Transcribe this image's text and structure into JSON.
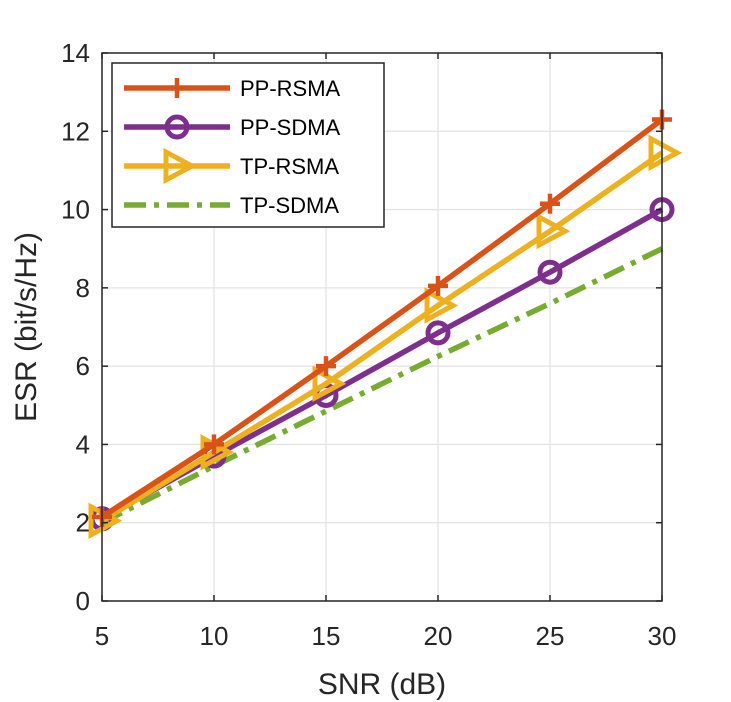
{
  "chart_data": {
    "type": "line",
    "title": "",
    "xlabel": "SNR (dB)",
    "ylabel": "ESR (bit/s/Hz)",
    "xlim": [
      5,
      30
    ],
    "ylim": [
      0,
      14
    ],
    "xticks": [
      5,
      10,
      15,
      20,
      25,
      30
    ],
    "yticks": [
      0,
      2,
      4,
      6,
      8,
      10,
      12,
      14
    ],
    "grid": true,
    "legend_position": "top-left",
    "x": [
      5,
      10,
      15,
      20,
      25,
      30
    ],
    "series": [
      {
        "name": "PP-RSMA",
        "values": [
          2.15,
          4.0,
          6.0,
          8.05,
          10.15,
          12.3
        ],
        "color": "#D95319",
        "marker": "plus",
        "line_style": "solid"
      },
      {
        "name": "PP-SDMA",
        "values": [
          2.1,
          3.7,
          5.25,
          6.85,
          8.4,
          10.0
        ],
        "color": "#7E2F8E",
        "marker": "circle",
        "line_style": "solid"
      },
      {
        "name": "TP-RSMA",
        "values": [
          2.05,
          3.8,
          5.55,
          7.55,
          9.45,
          11.45
        ],
        "color": "#EDB120",
        "marker": "triangle-right",
        "line_style": "solid"
      },
      {
        "name": "TP-SDMA",
        "values": [
          2.0,
          3.45,
          4.85,
          6.25,
          7.6,
          9.0
        ],
        "color": "#77AC30",
        "marker": "none",
        "line_style": "dashdot"
      }
    ]
  }
}
